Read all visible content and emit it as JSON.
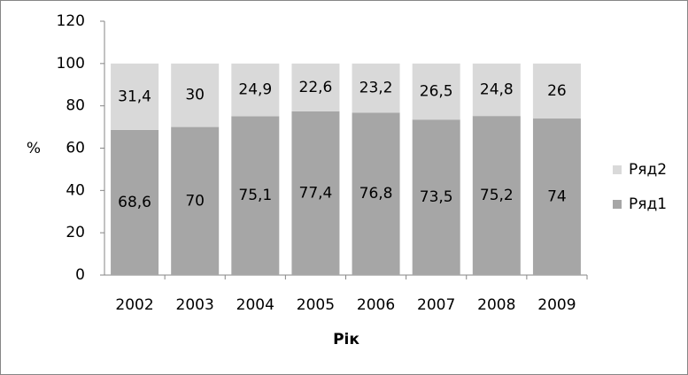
{
  "chart_data": {
    "type": "stacked_bar",
    "categories": [
      "2002",
      "2003",
      "2004",
      "2005",
      "2006",
      "2007",
      "2008",
      "2009"
    ],
    "series": [
      {
        "name": "Ряд1",
        "color": "#a6a6a6",
        "values": [
          68.6,
          70,
          75.1,
          77.4,
          76.8,
          73.5,
          75.2,
          74
        ],
        "value_labels": [
          "68,6",
          "70",
          "75,1",
          "77,4",
          "76,8",
          "73,5",
          "75,2",
          "74"
        ]
      },
      {
        "name": "Ряд2",
        "color": "#d9d9d9",
        "values": [
          31.4,
          30,
          24.9,
          22.6,
          23.2,
          26.5,
          24.8,
          26
        ],
        "value_labels": [
          "31,4",
          "30",
          "24,9",
          "22,6",
          "23,2",
          "26,5",
          "24,8",
          "26"
        ]
      }
    ],
    "y_label": "%",
    "x_label": "Рік",
    "ylim": [
      0,
      120
    ],
    "yticks": [
      0,
      20,
      40,
      60,
      80,
      100,
      120
    ],
    "grid": false,
    "legend": "right"
  }
}
